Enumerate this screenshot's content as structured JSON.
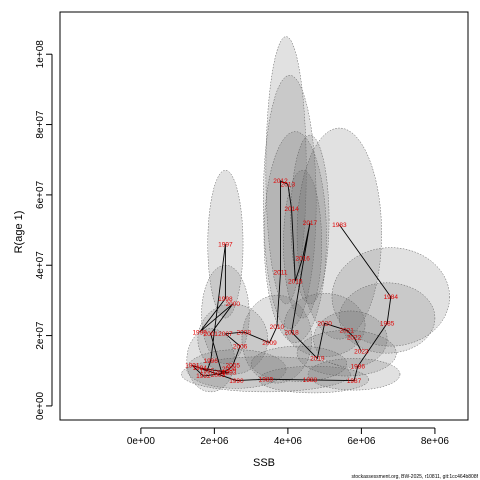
{
  "chart_data": {
    "type": "scatter",
    "title": "",
    "xlabel": "SSB",
    "ylabel": "R(age 1)",
    "xlim": [
      -2200000,
      8900000
    ],
    "ylim": [
      -4000000,
      112000000
    ],
    "xticks": [
      0,
      2000000,
      4000000,
      6000000,
      8000000
    ],
    "xtick_labels": [
      "0e+00",
      "2e+06",
      "4e+06",
      "6e+06",
      "8e+06"
    ],
    "yticks": [
      0,
      20000000,
      40000000,
      60000000,
      80000000,
      100000000
    ],
    "ytick_labels": [
      "0e+00",
      "2e+07",
      "4e+07",
      "6e+07",
      "8e+07",
      "1e+08"
    ],
    "grid": false,
    "points": [
      {
        "year": "1983",
        "x": 5400000,
        "y": 51500000
      },
      {
        "year": "1984",
        "x": 6800000,
        "y": 31000000
      },
      {
        "year": "1985",
        "x": 6700000,
        "y": 23500000
      },
      {
        "year": "1986",
        "x": 5900000,
        "y": 11200000
      },
      {
        "year": "1987",
        "x": 5800000,
        "y": 7200000
      },
      {
        "year": "1988",
        "x": 4600000,
        "y": 7400000
      },
      {
        "year": "1989",
        "x": 3400000,
        "y": 7600000
      },
      {
        "year": "1990",
        "x": 2600000,
        "y": 7200000
      },
      {
        "year": "1991",
        "x": 1400000,
        "y": 11500000
      },
      {
        "year": "1992",
        "x": 1700000,
        "y": 8500000
      },
      {
        "year": "1993",
        "x": 2400000,
        "y": 9500000
      },
      {
        "year": "1994",
        "x": 1600000,
        "y": 10800000
      },
      {
        "year": "1995",
        "x": 1800000,
        "y": 10000000
      },
      {
        "year": "1996",
        "x": 1900000,
        "y": 12800000
      },
      {
        "year": "1997",
        "x": 2300000,
        "y": 46000000
      },
      {
        "year": "1998",
        "x": 2300000,
        "y": 30500000
      },
      {
        "year": "1999",
        "x": 1600000,
        "y": 21000000
      },
      {
        "year": "2000",
        "x": 2500000,
        "y": 29000000
      },
      {
        "year": "2001",
        "x": 1900000,
        "y": 20500000
      },
      {
        "year": "2002",
        "x": 2200000,
        "y": 9500000
      },
      {
        "year": "2003",
        "x": 2100000,
        "y": 8800000
      },
      {
        "year": "2004",
        "x": 2400000,
        "y": 10500000
      },
      {
        "year": "2005",
        "x": 2500000,
        "y": 11500000
      },
      {
        "year": "2006",
        "x": 2700000,
        "y": 17000000
      },
      {
        "year": "2007",
        "x": 2300000,
        "y": 20500000
      },
      {
        "year": "2008",
        "x": 2800000,
        "y": 21000000
      },
      {
        "year": "2009",
        "x": 3500000,
        "y": 18000000
      },
      {
        "year": "2010",
        "x": 3700000,
        "y": 22500000
      },
      {
        "year": "2011",
        "x": 3800000,
        "y": 38000000
      },
      {
        "year": "2012",
        "x": 3800000,
        "y": 64000000
      },
      {
        "year": "2013",
        "x": 4000000,
        "y": 63000000
      },
      {
        "year": "2014",
        "x": 4100000,
        "y": 56000000
      },
      {
        "year": "2015",
        "x": 4200000,
        "y": 35500000
      },
      {
        "year": "2016",
        "x": 4400000,
        "y": 42000000
      },
      {
        "year": "2017",
        "x": 4600000,
        "y": 52000000
      },
      {
        "year": "2018",
        "x": 4100000,
        "y": 21000000
      },
      {
        "year": "2019",
        "x": 4800000,
        "y": 13500000
      },
      {
        "year": "2020",
        "x": 5000000,
        "y": 23500000
      },
      {
        "year": "2021",
        "x": 5600000,
        "y": 21500000
      },
      {
        "year": "2022",
        "x": 5800000,
        "y": 19500000
      },
      {
        "year": "2023",
        "x": 6000000,
        "y": 15500000
      }
    ],
    "ellipses": [
      {
        "cx": 1900000,
        "cy": 13000000,
        "rx": 650000,
        "ry": 9000000
      },
      {
        "cx": 2300000,
        "cy": 46000000,
        "rx": 480000,
        "ry": 21000000
      },
      {
        "cx": 2300000,
        "cy": 26000000,
        "rx": 650000,
        "ry": 14000000
      },
      {
        "cx": 2500000,
        "cy": 19000000,
        "rx": 950000,
        "ry": 10000000
      },
      {
        "cx": 2600000,
        "cy": 10500000,
        "rx": 1350000,
        "ry": 5500000
      },
      {
        "cx": 3400000,
        "cy": 9000000,
        "rx": 2300000,
        "ry": 5000000
      },
      {
        "cx": 3700000,
        "cy": 19000000,
        "rx": 950000,
        "ry": 12500000
      },
      {
        "cx": 3950000,
        "cy": 67000000,
        "rx": 550000,
        "ry": 38000000
      },
      {
        "cx": 4050000,
        "cy": 58000000,
        "rx": 720000,
        "ry": 36000000
      },
      {
        "cx": 4200000,
        "cy": 48000000,
        "rx": 850000,
        "ry": 30000000
      },
      {
        "cx": 4400000,
        "cy": 46000000,
        "rx": 520000,
        "ry": 21000000
      },
      {
        "cx": 4600000,
        "cy": 53000000,
        "rx": 520000,
        "ry": 24000000
      },
      {
        "cx": 5400000,
        "cy": 49000000,
        "rx": 1150000,
        "ry": 30000000
      },
      {
        "cx": 6800000,
        "cy": 31000000,
        "rx": 1600000,
        "ry": 14000000
      },
      {
        "cx": 6700000,
        "cy": 25000000,
        "rx": 1300000,
        "ry": 10000000
      },
      {
        "cx": 5000000,
        "cy": 23000000,
        "rx": 1100000,
        "ry": 9000000
      },
      {
        "cx": 5700000,
        "cy": 19000000,
        "rx": 1000000,
        "ry": 8000000
      },
      {
        "cx": 5600000,
        "cy": 15000000,
        "rx": 1350000,
        "ry": 6500000
      },
      {
        "cx": 5800000,
        "cy": 9000000,
        "rx": 1250000,
        "ry": 4500000
      },
      {
        "cx": 4700000,
        "cy": 7500000,
        "rx": 1500000,
        "ry": 3800000
      },
      {
        "cx": 4300000,
        "cy": 12000000,
        "rx": 1300000,
        "ry": 5000000
      }
    ]
  },
  "footer_text": "stockassessment.org, BW-2025, r10811, git:1cc464b808f"
}
